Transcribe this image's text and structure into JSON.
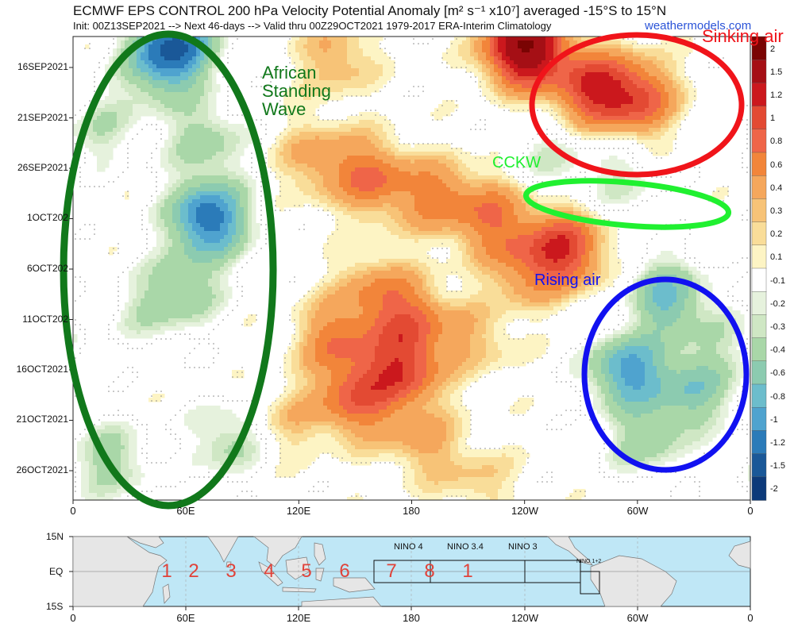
{
  "header": {
    "title": "ECMWF EPS CONTROL 200 hPa Velocity Potential Anomaly [m² s⁻¹ x10⁷] averaged -15°S to 15°N",
    "subtitle": "Init: 00Z13SEP2021 --> Next 46-days --> Valid thru 00Z29OCT2021 1979-2017 ERA-Interim Climatology",
    "credit": "weathermodels.com"
  },
  "annotations": {
    "african_wave": [
      "African",
      "Standing",
      "Wave"
    ],
    "sinking_air": "Sinking air",
    "cckw": "CCKW",
    "rising_air": "Rising air"
  },
  "colors": {
    "green": "#11781b",
    "red": "#f0141a",
    "lime": "#20f030",
    "blue": "#1111f0",
    "credit": "#2b54d8"
  },
  "chart_data": {
    "type": "heatmap",
    "title": "ECMWF EPS CONTROL 200 hPa Velocity Potential Anomaly [m² s⁻¹ x10⁷] averaged -15°S to 15°N",
    "y_tick_labels": [
      "16SEP2021",
      "21SEP2021",
      "26SEP2021",
      "1OCT202",
      "6OCT202",
      "11OCT202",
      "16OCT2021",
      "21OCT2021",
      "26OCT2021"
    ],
    "x_tick_labels": [
      "0",
      "60E",
      "120E",
      "180",
      "120W",
      "60W",
      "0"
    ],
    "colorbar_labels": [
      "2",
      "1.5",
      "1.2",
      "1",
      "0.8",
      "0.6",
      "0.4",
      "0.3",
      "0.2",
      "0.1",
      "-0.1",
      "-0.2",
      "-0.3",
      "-0.4",
      "-0.6",
      "-0.8",
      "-1",
      "-1.2",
      "-1.5",
      "-2"
    ],
    "colorbar_colors": [
      "#7a0403",
      "#a50f15",
      "#cb181d",
      "#e34a33",
      "#ef6548",
      "#f2853a",
      "#f5a75c",
      "#f7c377",
      "#f9dd99",
      "#fdf4c4",
      "#ffffff",
      "#e6f2dd",
      "#cfe7c4",
      "#a9d7a8",
      "#8ccbb0",
      "#6cbdcc",
      "#4fa3cf",
      "#2b7bb9",
      "#1a5898",
      "#0d3a7a"
    ],
    "contour_thresholds": [
      0.15,
      0.35,
      0.7,
      1.1,
      1.6,
      -0.15,
      -0.35,
      -0.7,
      -1.1,
      -1.6
    ],
    "blobs": [
      {
        "lon": 55,
        "day": 0.5,
        "amp": -1.3
      },
      {
        "lon": 45,
        "day": 3,
        "amp": -0.6
      },
      {
        "lon": 70,
        "day": 10,
        "amp": -0.5
      },
      {
        "lon": 72,
        "day": 18,
        "amp": -1.4
      },
      {
        "lon": 60,
        "day": 25,
        "amp": -0.5
      },
      {
        "lon": 15,
        "day": 9,
        "amp": -0.35
      },
      {
        "lon": 40,
        "day": 27,
        "amp": -0.3
      },
      {
        "lon": 82,
        "day": 40,
        "amp": -0.45
      },
      {
        "lon": 20,
        "day": 42,
        "amp": -0.5
      },
      {
        "lon": 240,
        "day": 1,
        "amp": 2.0
      },
      {
        "lon": 275,
        "day": 5,
        "amp": 1.1
      },
      {
        "lon": 300,
        "day": 6,
        "amp": 1.0
      },
      {
        "lon": 140,
        "day": 2,
        "amp": 0.45
      },
      {
        "lon": 130,
        "day": 12,
        "amp": 0.5
      },
      {
        "lon": 160,
        "day": 14,
        "amp": 0.8
      },
      {
        "lon": 195,
        "day": 16,
        "amp": 0.7
      },
      {
        "lon": 225,
        "day": 18,
        "amp": 0.7
      },
      {
        "lon": 262,
        "day": 21,
        "amp": 1.1
      },
      {
        "lon": 240,
        "day": 23,
        "amp": 0.55
      },
      {
        "lon": 160,
        "day": 25,
        "amp": 0.5
      },
      {
        "lon": 180,
        "day": 28,
        "amp": 0.75
      },
      {
        "lon": 140,
        "day": 30,
        "amp": 0.7
      },
      {
        "lon": 175,
        "day": 33,
        "amp": 1.0
      },
      {
        "lon": 150,
        "day": 36,
        "amp": 0.85
      },
      {
        "lon": 215,
        "day": 30,
        "amp": 0.35
      },
      {
        "lon": 185,
        "day": 40,
        "amp": 0.45
      },
      {
        "lon": 215,
        "day": 44,
        "amp": 0.3
      },
      {
        "lon": 300,
        "day": 28,
        "amp": 0.15
      },
      {
        "lon": 255,
        "day": 12,
        "amp": -0.3
      },
      {
        "lon": 292,
        "day": 14,
        "amp": -0.3
      },
      {
        "lon": 315,
        "day": 26,
        "amp": -0.9
      },
      {
        "lon": 295,
        "day": 33,
        "amp": -1.1
      },
      {
        "lon": 330,
        "day": 35,
        "amp": -0.7
      },
      {
        "lon": 305,
        "day": 40,
        "amp": -0.5
      },
      {
        "lon": 345,
        "day": 30,
        "amp": -0.25
      },
      {
        "lon": 115,
        "day": 38,
        "amp": 0.3
      }
    ]
  },
  "map": {
    "lat_labels": [
      "15N",
      "EQ",
      "15S"
    ],
    "lon_labels": [
      "0",
      "60E",
      "120E",
      "180",
      "120W",
      "60W",
      "0"
    ],
    "nino_labels": [
      "NINO 4",
      "NINO 3.4",
      "NINO 3"
    ],
    "nino12_label": "NINO 1+2",
    "phase_numbers": [
      "1",
      "2",
      "3",
      "4",
      "5",
      "6",
      "7",
      "8",
      "1"
    ],
    "ocean_color": "#bfe7f6",
    "land_color": "#e6e6e6"
  }
}
